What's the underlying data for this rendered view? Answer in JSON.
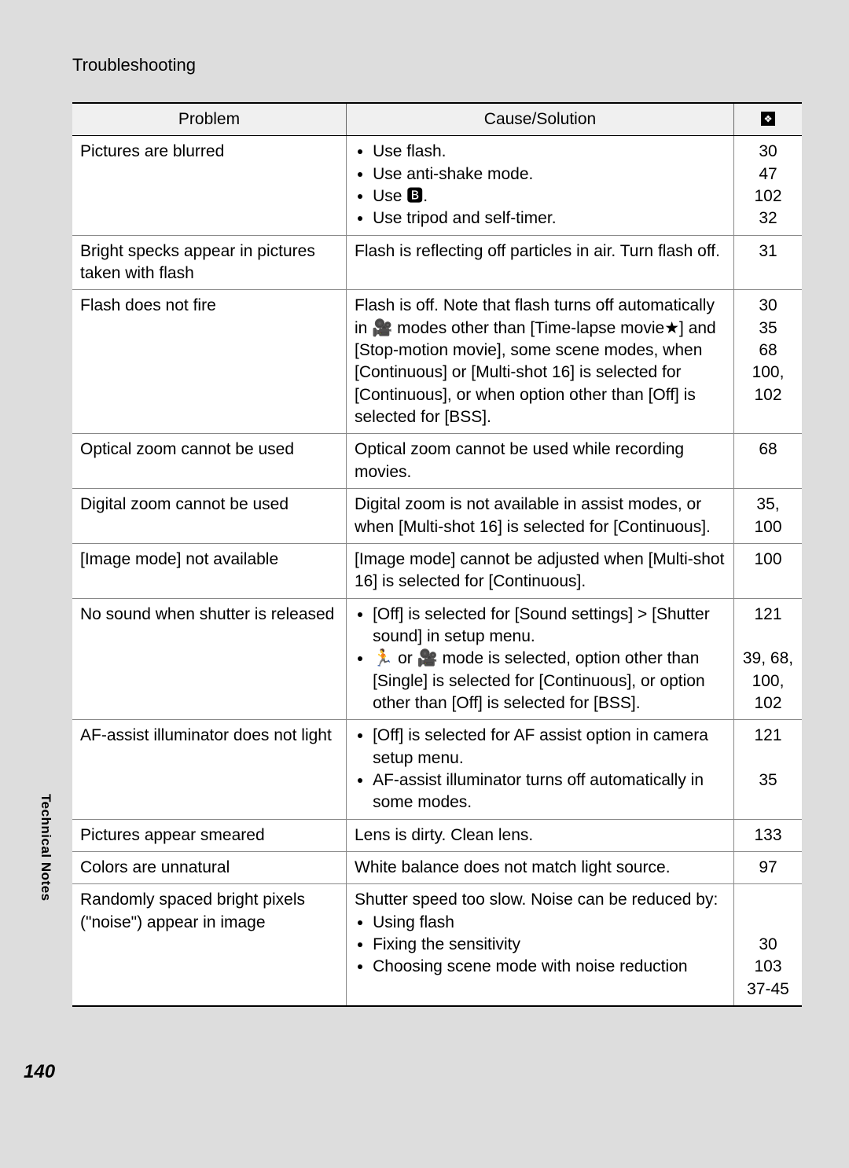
{
  "section_title": "Troubleshooting",
  "headers": {
    "problem": "Problem",
    "solution": "Cause/Solution",
    "page_icon": "page-ref-icon"
  },
  "rows": [
    {
      "problem": "Pictures are blurred",
      "solution_bullets": [
        "Use flash.",
        "Use anti-shake mode.",
        "Use 🅱︎.",
        "Use tripod and self-timer."
      ],
      "pages": [
        "30",
        "47",
        "102",
        "32"
      ]
    },
    {
      "problem": "Bright specks appear in pictures taken with flash",
      "solution_text": "Flash is reflecting off particles in air. Turn flash off.",
      "pages": [
        "31"
      ]
    },
    {
      "problem": "Flash does not fire",
      "solution_text": "Flash is off. Note that flash turns off automatically in 🎥 modes other than [Time-lapse movie★] and [Stop-motion movie], some scene modes, when [Continuous] or [Multi-shot 16] is selected for [Continuous], or when option other than [Off] is selected for [BSS].",
      "pages": [
        "30",
        "35",
        "68",
        "100,",
        "102"
      ]
    },
    {
      "problem": "Optical zoom cannot be used",
      "solution_text": "Optical zoom cannot be used while recording movies.",
      "pages": [
        "68"
      ]
    },
    {
      "problem": "Digital zoom cannot be used",
      "solution_text": "Digital zoom is not available in assist modes, or when [Multi-shot 16] is selected for [Continuous].",
      "pages": [
        "35,",
        "100"
      ]
    },
    {
      "problem": "[Image mode] not available",
      "solution_text": "[Image mode] cannot be adjusted when [Multi-shot 16] is selected for [Continuous].",
      "pages": [
        "100"
      ]
    },
    {
      "problem": "No sound when shutter is released",
      "solution_bullets": [
        "[Off] is selected for [Sound settings] > [Shutter sound] in setup menu.",
        "🏃 or 🎥 mode is selected, option other than [Single] is selected for [Continuous], or option other than [Off] is selected for [BSS]."
      ],
      "pages": [
        "121",
        "",
        "39, 68,",
        "100,",
        "102"
      ]
    },
    {
      "problem": "AF-assist illuminator does not light",
      "solution_bullets": [
        "[Off] is selected for AF assist option in camera setup menu.",
        "AF-assist illuminator turns off automatically in some modes."
      ],
      "pages": [
        "121",
        "",
        "35"
      ]
    },
    {
      "problem": "Pictures appear smeared",
      "solution_text": "Lens is dirty. Clean lens.",
      "pages": [
        "133"
      ]
    },
    {
      "problem": "Colors are unnatural",
      "solution_text": "White balance does not match light source.",
      "pages": [
        "97"
      ]
    },
    {
      "problem": "Randomly spaced bright pixels (\"noise\") appear in image",
      "solution_lines": [
        "Shutter speed too slow. Noise can be reduced by:"
      ],
      "solution_bullets": [
        "Using flash",
        "Fixing the sensitivity",
        "Choosing scene mode with noise reduction"
      ],
      "pages": [
        "",
        "",
        "30",
        "103",
        "37-45"
      ]
    }
  ],
  "sidebar_label": "Technical Notes",
  "page_number": "140",
  "colors": {
    "page_bg": "#dddddd",
    "table_bg": "#ffffff",
    "header_bg": "#f0f0f0",
    "border_strong": "#000000",
    "border_light": "#888888"
  }
}
